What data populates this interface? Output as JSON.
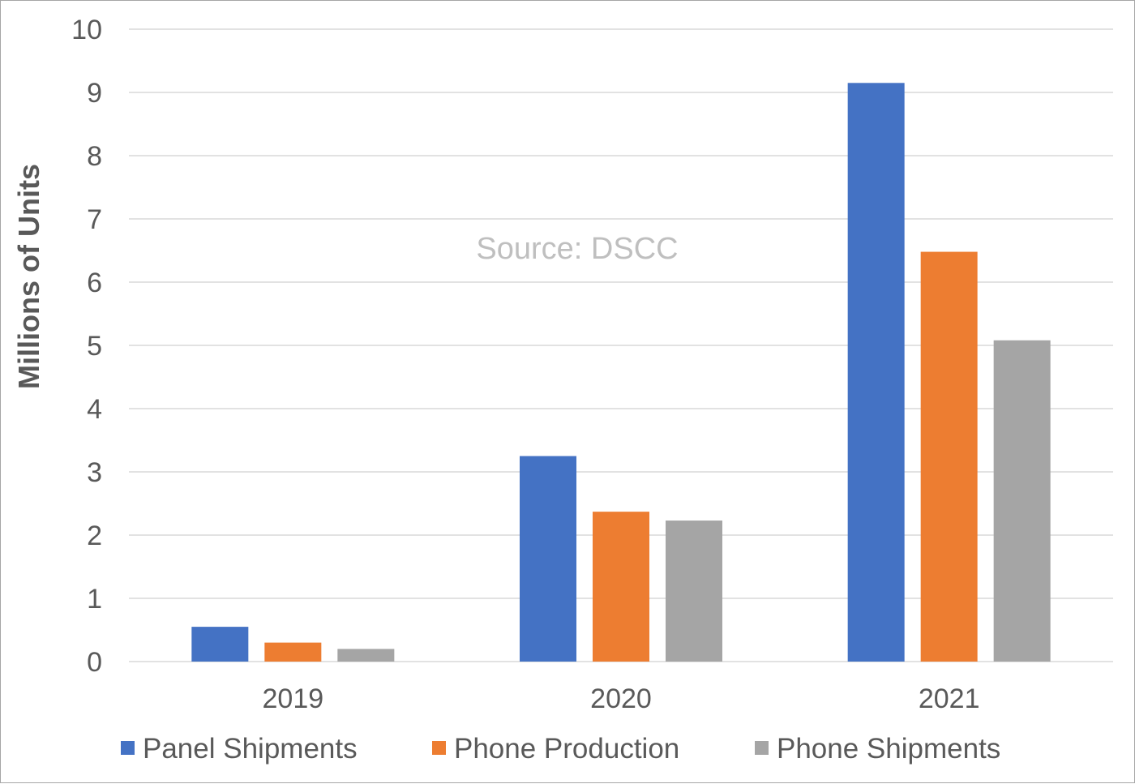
{
  "chart_data": {
    "type": "bar",
    "categories": [
      "2019",
      "2020",
      "2021"
    ],
    "series": [
      {
        "name": "Panel Shipments",
        "values": [
          0.55,
          3.25,
          9.15
        ],
        "color": "#4472c4"
      },
      {
        "name": "Phone Production",
        "values": [
          0.3,
          2.37,
          6.48
        ],
        "color": "#ed7d31"
      },
      {
        "name": "Phone Shipments",
        "values": [
          0.2,
          2.23,
          5.08
        ],
        "color": "#a5a5a5"
      }
    ],
    "ylabel": "Millions of Units",
    "xlabel": "",
    "ylim": [
      0,
      10
    ],
    "yticks": [
      "0",
      "1",
      "2",
      "3",
      "4",
      "5",
      "6",
      "7",
      "8",
      "9",
      "10"
    ],
    "annotation": "Source: DSCC",
    "grid": true,
    "legend_position": "bottom"
  }
}
